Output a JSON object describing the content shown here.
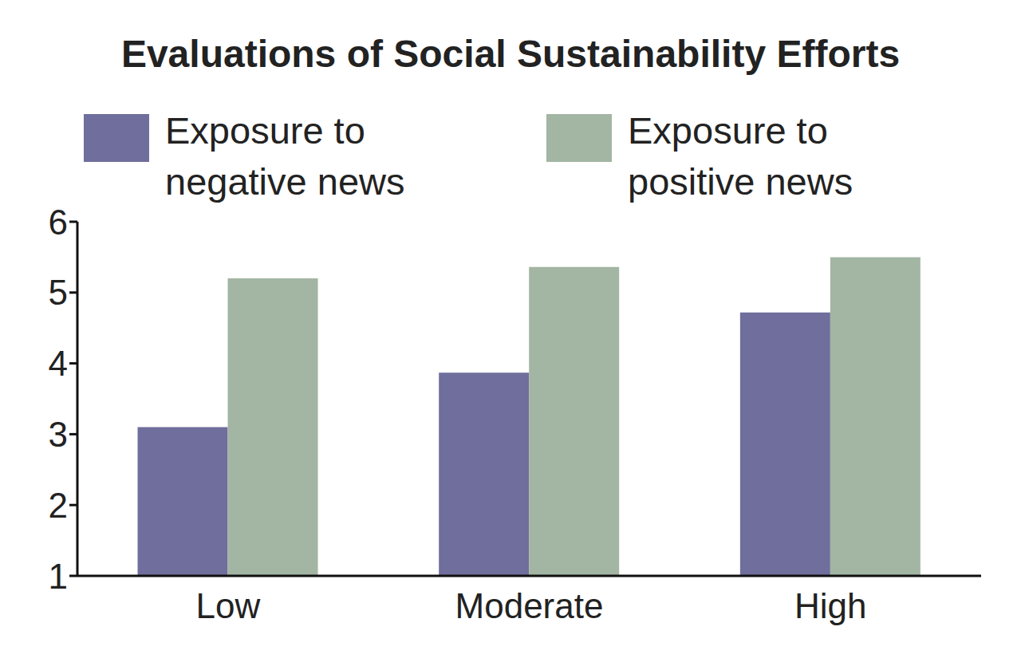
{
  "chart_data": {
    "type": "bar",
    "title": "Evaluations of Social Sustainability Efforts",
    "categories": [
      "Low",
      "Moderate",
      "High"
    ],
    "series": [
      {
        "name": "Exposure to negative news",
        "color": "#6f6e9c",
        "values": [
          3.1,
          3.87,
          4.72
        ]
      },
      {
        "name": "Exposure to positive news",
        "color": "#a3b5a3",
        "values": [
          5.2,
          5.36,
          5.5
        ]
      }
    ],
    "ylim": [
      1,
      6
    ],
    "yticks": [
      1,
      2,
      3,
      4,
      5,
      6
    ],
    "grid": false
  }
}
